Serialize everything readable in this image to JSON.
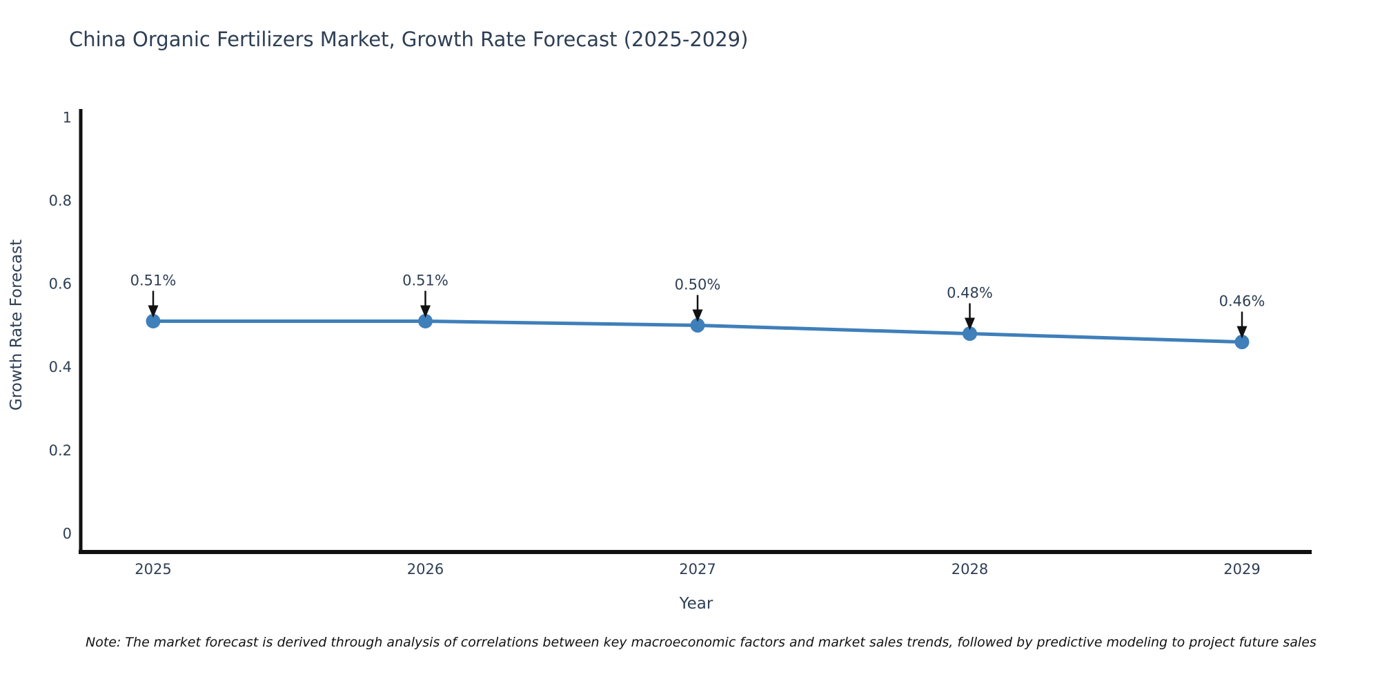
{
  "chart_data": {
    "type": "line",
    "title": "China Organic Fertilizers Market, Growth Rate Forecast (2025-2029)",
    "xlabel": "Year",
    "ylabel": "Growth Rate Forecast",
    "categories": [
      "2025",
      "2026",
      "2027",
      "2028",
      "2029"
    ],
    "series": [
      {
        "name": "Growth Rate Forecast",
        "values": [
          0.51,
          0.51,
          0.5,
          0.48,
          0.46
        ]
      }
    ],
    "point_labels": [
      "0.51%",
      "0.51%",
      "0.50%",
      "0.48%",
      "0.46%"
    ],
    "ylim": [
      0,
      1
    ],
    "yticks": [
      0,
      0.2,
      0.4,
      0.6,
      0.8,
      1
    ],
    "ytick_labels": [
      "0",
      "0.2",
      "0.4",
      "0.6",
      "0.8",
      "1"
    ],
    "grid": false,
    "legend_position": "none",
    "annotation_style": "down-arrow-to-point",
    "colors": {
      "line": "#3f7fba",
      "marker": "#3f7fba",
      "arrow": "#111111",
      "axis": "#111111",
      "text": "#2e3f54"
    }
  },
  "footnote": "Note: The market forecast is derived through analysis of correlations between key macroeconomic factors and market sales trends, followed by predictive modeling to project future sales"
}
